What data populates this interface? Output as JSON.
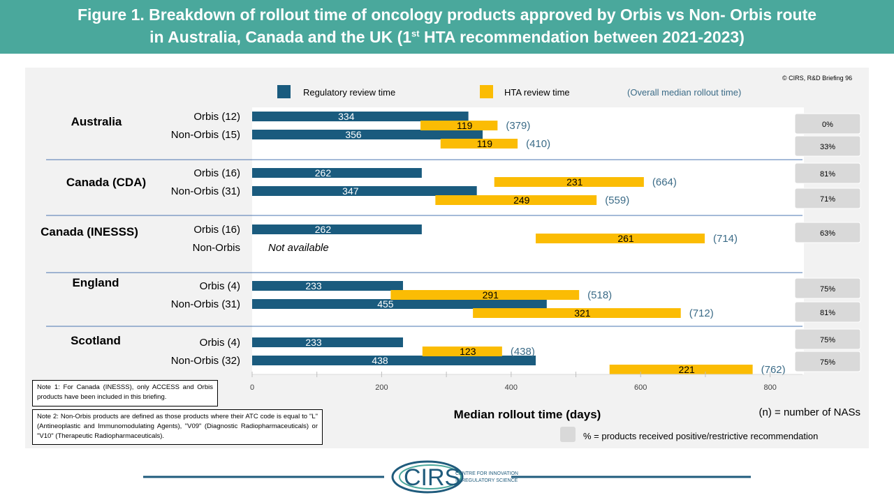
{
  "header": {
    "title_line1": "Figure 1. Breakdown of rollout time of oncology products approved by Orbis vs Non- Orbis route",
    "title_line2_pre": "in Australia, Canada and the UK (1",
    "title_line2_sup": "st",
    "title_line2_post": " HTA recommendation between 2021-2023)"
  },
  "copyright": "© CIRS, R&D Briefing 96",
  "notes": {
    "note1": "Note 1: For Canada (INESSS), only ACCESS and Orbis products have been included in this briefing.",
    "note2": "Note 2: Non-Orbis products are defined as those products where their ATC code is equal to \"L\" (Antineoplastic and Immunomodulating Agents), \"V09\" (Diagnostic Radiopharmaceuticals) or \"V10\" (Therapeutic Radiopharmaceuticals)."
  },
  "footer": {
    "logo_text": "CIRS",
    "logo_sub1": "CENTRE FOR INNOVATION",
    "logo_sub2": "IN REGULATORY SCIENCE"
  },
  "chart_data": {
    "type": "bar",
    "colors": {
      "regulatory": "#1a5b7e",
      "hta": "#fbbc04",
      "overall": "#3b6b87",
      "pct_box": "#d9d9d9",
      "divider": "#4a74b0"
    },
    "legend": {
      "regulatory": "Regulatory review time",
      "hta": "HTA review time",
      "overall": "(Overall median rollout time)"
    },
    "xlabel": "Median rollout time (days)",
    "xlim": [
      0,
      850
    ],
    "xticks": [
      0,
      200,
      400,
      600,
      800
    ],
    "n_note": "(n) = number of NASs",
    "pct_note": "% = products received positive/restrictive recommendation",
    "groups": [
      {
        "name": "Australia",
        "rows": [
          {
            "label": "Orbis (12)",
            "reg": 334,
            "hta_start": 260,
            "hta": 119,
            "end": 379,
            "overall": "(379)",
            "pct": "0%"
          },
          {
            "label": "Non-Orbis (15)",
            "reg": 356,
            "hta_start": 291,
            "hta": 119,
            "end": 410,
            "overall": "(410)",
            "pct": "33%"
          }
        ]
      },
      {
        "name": "Canada (CDA)",
        "rows": [
          {
            "label": "Orbis (16)",
            "reg": 262,
            "hta_start": 374,
            "hta": 231,
            "end": 605,
            "overall": "(664)",
            "pct": "81%"
          },
          {
            "label": "Non-Orbis (31)",
            "reg": 347,
            "hta_start": 283,
            "hta": 249,
            "end": 532,
            "overall": "(559)",
            "pct": "71%"
          }
        ]
      },
      {
        "name": "Canada (INESSS)",
        "rows": [
          {
            "label": "Orbis (16)",
            "reg": 262,
            "hta_start": 438,
            "hta": 261,
            "end": 699,
            "overall": "(714)",
            "pct": "63%"
          },
          {
            "label": "Non-Orbis",
            "reg": null,
            "not_available": "Not available"
          }
        ]
      },
      {
        "name": "England",
        "rows": [
          {
            "label": "Orbis (4)",
            "reg": 233,
            "hta_start": 214,
            "hta": 291,
            "end": 505,
            "overall": "(518)",
            "pct": "75%"
          },
          {
            "label": "Non-Orbis (31)",
            "reg": 455,
            "hta_start": 341,
            "hta": 321,
            "end": 662,
            "overall": "(712)",
            "pct": "81%"
          }
        ]
      },
      {
        "name": "Scotland",
        "rows": [
          {
            "label": "Orbis (4)",
            "reg": 233,
            "hta_start": 263,
            "hta": 123,
            "end": 386,
            "overall": "(438)",
            "pct": "75%"
          },
          {
            "label": "Non-Orbis (32)",
            "reg": 438,
            "hta_start": 552,
            "hta": 221,
            "end": 773,
            "overall": "(762)",
            "pct": "75%"
          }
        ]
      }
    ]
  }
}
